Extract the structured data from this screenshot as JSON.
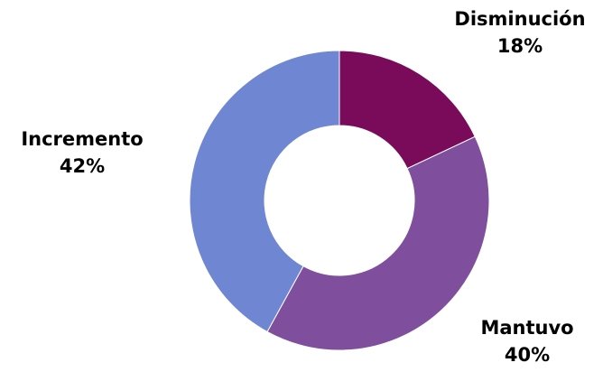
{
  "chart_data": {
    "type": "pie",
    "categories": [
      "Disminución",
      "Mantuvo",
      "Incremento"
    ],
    "values": [
      18,
      40,
      42
    ],
    "value_labels": [
      "18%",
      "40%",
      "42%"
    ],
    "colors": [
      "#7a0b5a",
      "#7f4f9e",
      "#6f87d3"
    ],
    "donut": true,
    "legend": "none"
  }
}
